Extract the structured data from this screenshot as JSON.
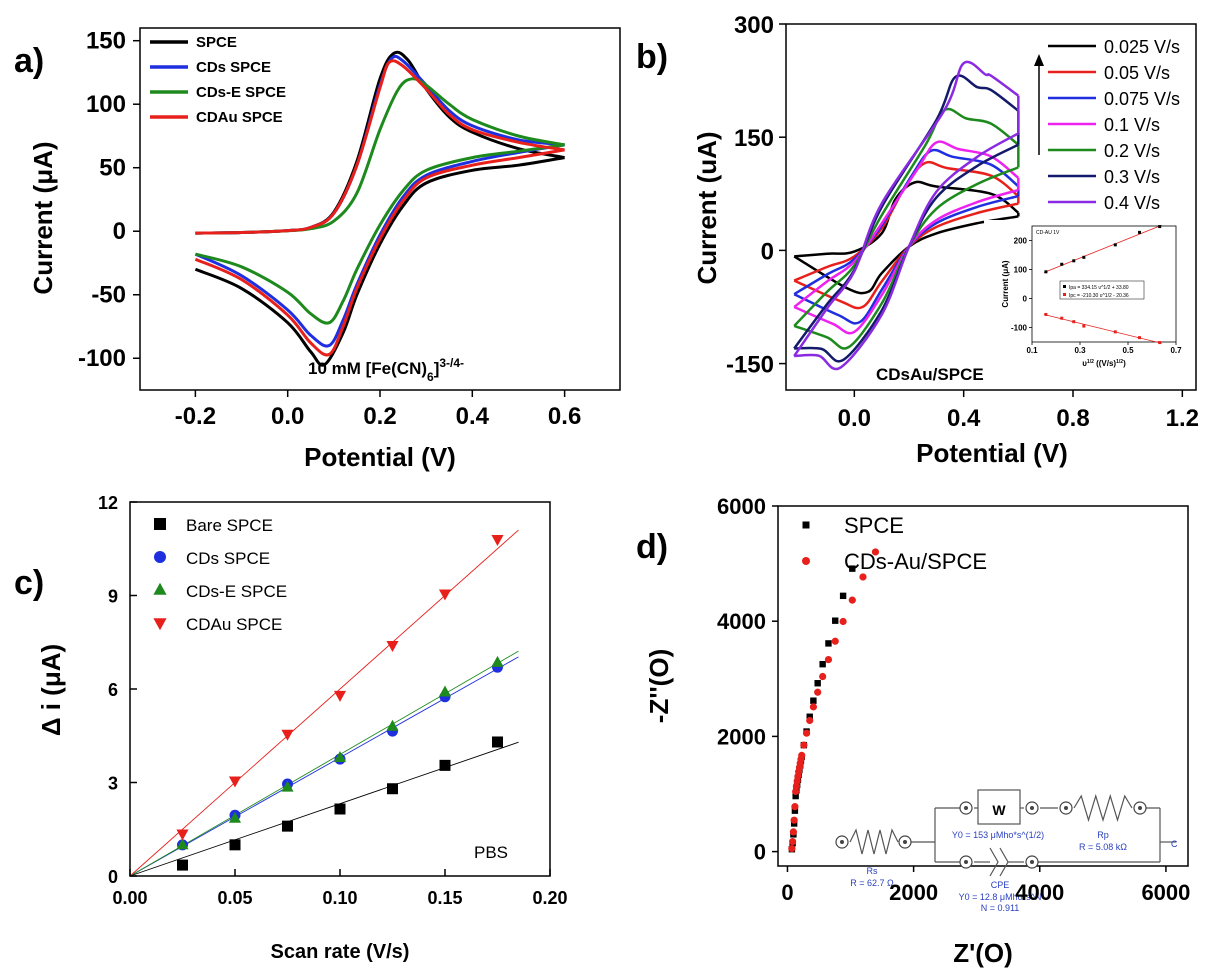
{
  "chart_data": [
    {
      "panel": "a)",
      "type": "line",
      "xlabel": "Potential (V)",
      "ylabel": "Current (μA)",
      "xlim": [
        -0.32,
        0.72
      ],
      "ylim": [
        -125,
        160
      ],
      "xticks": [
        -0.2,
        0.0,
        0.2,
        0.4,
        0.6
      ],
      "xtick_labels": [
        "-0.2",
        "0.0",
        "0.2",
        "0.4",
        "0.6"
      ],
      "yticks": [
        -100,
        -50,
        0,
        50,
        100,
        150
      ],
      "ytick_labels": [
        "-100",
        "-50",
        "0",
        "50",
        "100",
        "150"
      ],
      "annotation": "10 mM [Fe(CN)",
      "annotation_sub": "6",
      "annotation_sup": "3-/4-",
      "legend_position": "top-left",
      "series": [
        {
          "name": "SPCE",
          "color": "#000000",
          "forward": [
            [
              -0.2,
              -1.5
            ],
            [
              -0.1,
              -1
            ],
            [
              0.0,
              0.5
            ],
            [
              0.05,
              3
            ],
            [
              0.1,
              15
            ],
            [
              0.15,
              55
            ],
            [
              0.2,
              120
            ],
            [
              0.23,
              140
            ],
            [
              0.26,
              135
            ],
            [
              0.3,
              112
            ],
            [
              0.35,
              90
            ],
            [
              0.4,
              78
            ],
            [
              0.5,
              65
            ],
            [
              0.6,
              58
            ]
          ],
          "reverse": [
            [
              0.6,
              58
            ],
            [
              0.5,
              52
            ],
            [
              0.4,
              48
            ],
            [
              0.3,
              38
            ],
            [
              0.25,
              20
            ],
            [
              0.2,
              -10
            ],
            [
              0.15,
              -50
            ],
            [
              0.12,
              -80
            ],
            [
              0.08,
              -105
            ],
            [
              0.05,
              -95
            ],
            [
              0.0,
              -72
            ],
            [
              -0.1,
              -45
            ],
            [
              -0.2,
              -30
            ]
          ]
        },
        {
          "name": "CDs SPCE",
          "color": "#1f2fe0",
          "forward": [
            [
              -0.2,
              -1.5
            ],
            [
              -0.1,
              -1
            ],
            [
              0.0,
              0.5
            ],
            [
              0.05,
              3
            ],
            [
              0.1,
              14
            ],
            [
              0.15,
              52
            ],
            [
              0.2,
              115
            ],
            [
              0.225,
              136
            ],
            [
              0.25,
              134
            ],
            [
              0.3,
              115
            ],
            [
              0.35,
              95
            ],
            [
              0.4,
              83
            ],
            [
              0.5,
              72
            ],
            [
              0.6,
              68
            ]
          ],
          "reverse": [
            [
              0.6,
              68
            ],
            [
              0.5,
              62
            ],
            [
              0.4,
              55
            ],
            [
              0.3,
              44
            ],
            [
              0.25,
              27
            ],
            [
              0.2,
              -3
            ],
            [
              0.15,
              -42
            ],
            [
              0.12,
              -70
            ],
            [
              0.09,
              -90
            ],
            [
              0.05,
              -82
            ],
            [
              0.0,
              -62
            ],
            [
              -0.1,
              -35
            ],
            [
              -0.2,
              -18
            ]
          ]
        },
        {
          "name": "CDs-E SPCE",
          "color": "#1e8a1e",
          "forward": [
            [
              -0.2,
              -1.5
            ],
            [
              -0.1,
              -1
            ],
            [
              0.0,
              0.3
            ],
            [
              0.05,
              2
            ],
            [
              0.1,
              8
            ],
            [
              0.15,
              30
            ],
            [
              0.2,
              80
            ],
            [
              0.24,
              112
            ],
            [
              0.27,
              120
            ],
            [
              0.3,
              115
            ],
            [
              0.35,
              100
            ],
            [
              0.4,
              88
            ],
            [
              0.5,
              75
            ],
            [
              0.6,
              68
            ]
          ],
          "reverse": [
            [
              0.6,
              68
            ],
            [
              0.5,
              63
            ],
            [
              0.4,
              58
            ],
            [
              0.3,
              48
            ],
            [
              0.25,
              32
            ],
            [
              0.2,
              5
            ],
            [
              0.15,
              -30
            ],
            [
              0.12,
              -55
            ],
            [
              0.09,
              -72
            ],
            [
              0.05,
              -65
            ],
            [
              0.0,
              -48
            ],
            [
              -0.1,
              -28
            ],
            [
              -0.2,
              -18
            ]
          ]
        },
        {
          "name": "CDAu SPCE",
          "color": "#e8201c",
          "forward": [
            [
              -0.2,
              -1.5
            ],
            [
              -0.1,
              -1
            ],
            [
              0.0,
              0.5
            ],
            [
              0.05,
              3
            ],
            [
              0.1,
              14
            ],
            [
              0.15,
              52
            ],
            [
              0.2,
              113
            ],
            [
              0.22,
              133
            ],
            [
              0.25,
              130
            ],
            [
              0.3,
              112
            ],
            [
              0.35,
              92
            ],
            [
              0.4,
              80
            ],
            [
              0.5,
              70
            ],
            [
              0.6,
              64
            ]
          ],
          "reverse": [
            [
              0.6,
              64
            ],
            [
              0.5,
              58
            ],
            [
              0.4,
              52
            ],
            [
              0.3,
              42
            ],
            [
              0.25,
              24
            ],
            [
              0.2,
              -6
            ],
            [
              0.15,
              -45
            ],
            [
              0.12,
              -75
            ],
            [
              0.09,
              -97
            ],
            [
              0.05,
              -88
            ],
            [
              0.0,
              -66
            ],
            [
              -0.1,
              -38
            ],
            [
              -0.2,
              -22
            ]
          ]
        }
      ]
    },
    {
      "panel": "b)",
      "type": "line",
      "xlabel": "Potential (V)",
      "ylabel": "Current (uA)",
      "xlim": [
        -0.25,
        1.25
      ],
      "ylim": [
        -185,
        300
      ],
      "xticks": [
        0.0,
        0.4,
        0.8,
        1.2
      ],
      "xtick_labels": [
        "0.0",
        "0.4",
        "0.8",
        "1.2"
      ],
      "yticks": [
        -150,
        0,
        150,
        300
      ],
      "ytick_labels": [
        "-150",
        "0",
        "150",
        "300"
      ],
      "annotation": "CDsAu/SPCE",
      "legend_position": "top-right",
      "series": [
        {
          "name": "0.025 V/s",
          "color": "#000000",
          "peak": 90,
          "valley": -55,
          "pa": 0.22,
          "pc": 0.05,
          "end_top": 50,
          "end_bot": 45,
          "start": -8
        },
        {
          "name": "0.05 V/s",
          "color": "#e8201c",
          "peak": 116,
          "valley": -75,
          "pa": 0.26,
          "pc": 0.03,
          "end_top": 72,
          "end_bot": 62,
          "start": -40
        },
        {
          "name": "0.075 V/s",
          "color": "#1f2fe0",
          "peak": 132,
          "valley": -95,
          "pa": 0.28,
          "pc": 0.02,
          "end_top": 85,
          "end_bot": 72,
          "start": -58
        },
        {
          "name": "0.1 V/s",
          "color": "#ee22ee",
          "peak": 143,
          "valley": -108,
          "pa": 0.3,
          "pc": 0.0,
          "end_top": 96,
          "end_bot": 80,
          "start": -75
        },
        {
          "name": "0.2 V/s",
          "color": "#1e8a1e",
          "peak": 186,
          "valley": -128,
          "pa": 0.33,
          "pc": -0.02,
          "end_top": 140,
          "end_bot": 110,
          "start": -100
        },
        {
          "name": "0.3 V/s",
          "color": "#141a6b",
          "peak": 230,
          "valley": -145,
          "pa": 0.37,
          "pc": -0.04,
          "end_top": 185,
          "end_bot": 140,
          "start": -130
        },
        {
          "name": "0.4 V/s",
          "color": "#8a2be2",
          "peak": 248,
          "valley": -155,
          "pa": 0.4,
          "pc": -0.05,
          "end_top": 205,
          "end_bot": 155,
          "start": -140
        }
      ],
      "inset": {
        "title": "CD-AU 1V",
        "xlabel": "υ",
        "xlabel_sup": "1/2",
        "xlabel_rest": " ((V/s)",
        "xlabel_sup2": "1/2",
        "xlabel_close": ")",
        "ylabel": "Current (μA)",
        "xlim": [
          0.1,
          0.7
        ],
        "ylim": [
          -150,
          250
        ],
        "xticks": [
          0.1,
          0.3,
          0.5,
          0.7
        ],
        "xtick_labels": [
          "0.1",
          "0.3",
          "0.5",
          "0.7"
        ],
        "yticks": [
          -100,
          0,
          100,
          200
        ],
        "ytick_labels": [
          "-100",
          "0",
          "100",
          "200"
        ],
        "legend": [
          "Ipa = 334.15 υ^1/2 + 33.80",
          "Ipc = -210.30 υ^1/2 - 20.36"
        ],
        "x": [
          0.158,
          0.224,
          0.274,
          0.316,
          0.447,
          0.548,
          0.632
        ],
        "ipa": [
          92,
          118,
          130,
          142,
          185,
          228,
          248
        ],
        "ipc": [
          -55,
          -68,
          -80,
          -95,
          -115,
          -135,
          -152
        ]
      }
    },
    {
      "panel": "c)",
      "type": "scatter",
      "xlabel": "Scan rate (V/s)",
      "ylabel": "Δ i (μA)",
      "xlim": [
        0.0,
        0.2
      ],
      "ylim": [
        0,
        12
      ],
      "xticks": [
        0.0,
        0.05,
        0.1,
        0.15,
        0.2
      ],
      "xtick_labels": [
        "0.00",
        "0.05",
        "0.10",
        "0.15",
        "0.20"
      ],
      "yticks": [
        0,
        3,
        6,
        9,
        12
      ],
      "ytick_labels": [
        "0",
        "3",
        "6",
        "9",
        "12"
      ],
      "annotation": "PBS",
      "legend_position": "top-left",
      "x": [
        0.025,
        0.05,
        0.075,
        0.1,
        0.125,
        0.15,
        0.175
      ],
      "series": [
        {
          "name": "Bare SPCE",
          "marker": "square",
          "color": "#000000",
          "values": [
            0.35,
            1.0,
            1.6,
            2.15,
            2.8,
            3.55,
            4.3
          ],
          "slope": 23.2
        },
        {
          "name": "CDs SPCE",
          "marker": "circle",
          "color": "#1f2fe0",
          "values": [
            1.0,
            1.95,
            2.95,
            3.75,
            4.65,
            5.75,
            6.7
          ],
          "slope": 38.0
        },
        {
          "name": "CDs-E SPCE",
          "marker": "triangle-up",
          "color": "#1e8a1e",
          "values": [
            1.0,
            1.85,
            2.85,
            3.8,
            4.8,
            5.9,
            6.85
          ],
          "slope": 39.0
        },
        {
          "name": "CDAu SPCE",
          "marker": "triangle-down",
          "color": "#e8201c",
          "values": [
            1.35,
            3.05,
            4.55,
            5.8,
            7.4,
            9.05,
            10.8
          ],
          "slope": 60.0
        }
      ]
    },
    {
      "panel": "d)",
      "type": "scatter",
      "xlabel": "Z'(O)",
      "ylabel": "-Z''(O)",
      "xlim": [
        -150,
        6350
      ],
      "ylim": [
        -250,
        6000
      ],
      "xticks": [
        0,
        2000,
        4000,
        6000
      ],
      "xtick_labels": [
        "0",
        "2000",
        "4000",
        "6000"
      ],
      "yticks": [
        0,
        2000,
        4000,
        6000
      ],
      "ytick_labels": [
        "0",
        "2000",
        "4000",
        "6000"
      ],
      "legend_position": "top-left",
      "series": [
        {
          "name": "SPCE",
          "marker": "square",
          "color": "#000000",
          "scale": 69.2,
          "exp": 0.62
        },
        {
          "name": "CDs-Au/SPCE",
          "marker": "circle",
          "color": "#e8201c",
          "scale": 103.0,
          "exp": 0.545
        }
      ],
      "circuit": {
        "w_label": "W",
        "w_value": "Y0 = 153 μMho*s^(1/2)",
        "rs_label": "Rs",
        "rs_value": "R = 62.7 Ω",
        "rp_label": "Rp",
        "rp_value": "R = 5.08 kΩ",
        "cpe_label": "CPE",
        "cpe_value": "Y0 = 12.8 μMho*s^N",
        "cpe_n": "N = 0.911",
        "end_label": "C"
      }
    }
  ]
}
